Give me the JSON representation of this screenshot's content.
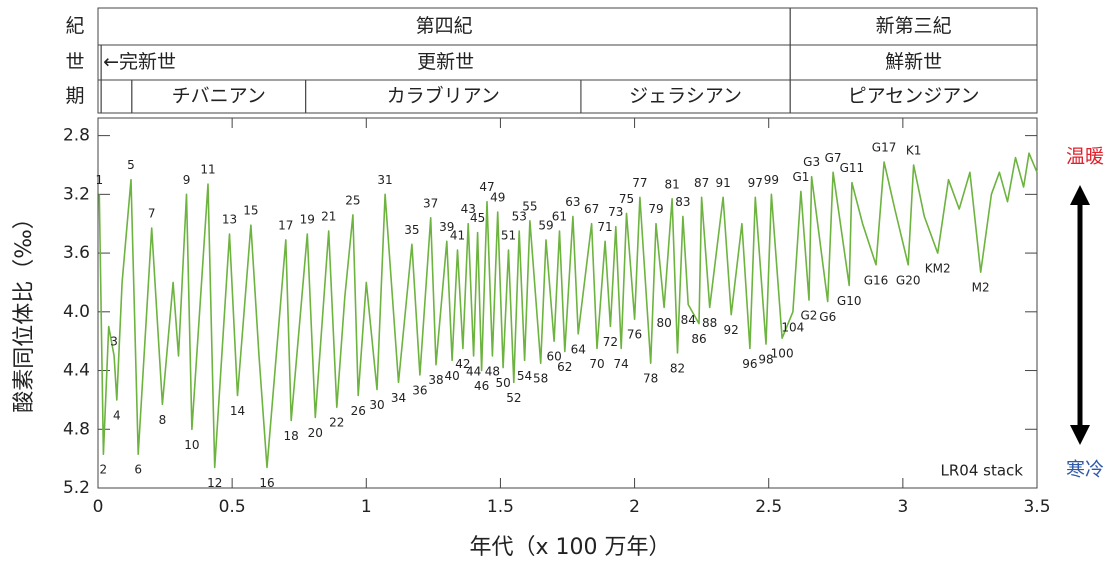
{
  "header": {
    "rows": [
      {
        "label": "紀",
        "cells": [
          {
            "text": "第四紀",
            "start": 0,
            "end": 2.58
          },
          {
            "text": "新第三紀",
            "start": 2.58,
            "end": 3.5
          }
        ]
      },
      {
        "label": "世",
        "cells": [
          {
            "text": "←完新世",
            "start": 0,
            "end": 0.0117
          },
          {
            "text": "更新世",
            "start": 0.0117,
            "end": 2.58
          },
          {
            "text": "鮮新世",
            "start": 2.58,
            "end": 3.5
          }
        ]
      },
      {
        "label": "期",
        "cells": [
          {
            "start": 0,
            "end": 0.0117
          },
          {
            "start": 0.0117,
            "end": 0.126
          },
          {
            "text": "チバニアン",
            "start": 0.126,
            "end": 0.774
          },
          {
            "text": "カラブリアン",
            "start": 0.774,
            "end": 1.8
          },
          {
            "text": "ジェラシアン",
            "start": 1.8,
            "end": 2.58
          },
          {
            "text": "ピアセンジアン",
            "start": 2.58,
            "end": 3.5
          }
        ]
      }
    ]
  },
  "chart_data": {
    "type": "line",
    "x_label": "年代（x 100 万年）",
    "y_label": "酸素同位体比（‰）",
    "xlim": [
      0,
      3.5
    ],
    "xticks": [
      0,
      0.5,
      1,
      1.5,
      2,
      2.5,
      3,
      3.5
    ],
    "ylim": [
      5.2,
      2.68
    ],
    "yticks": [
      {
        "value": 2.8,
        "label": "2.8"
      },
      {
        "value": 3.2,
        "label": "3.2"
      },
      {
        "value": 3.6,
        "label": "3.6"
      },
      {
        "value": 4,
        "label": "4.0"
      },
      {
        "value": 4.4,
        "label": "4.4"
      },
      {
        "value": 4.8,
        "label": "4.8"
      },
      {
        "value": 5.2,
        "label": "5.2"
      }
    ],
    "warm_label": {
      "text": "温暖",
      "color": "#e0202a"
    },
    "cold_label": {
      "text": "寒冷",
      "color": "#2f5aa8"
    },
    "x": [
      0.005,
      0.02,
      0.04,
      0.06,
      0.07,
      0.09,
      0.123,
      0.15,
      0.2,
      0.24,
      0.28,
      0.3,
      0.33,
      0.35,
      0.41,
      0.435,
      0.49,
      0.52,
      0.57,
      0.6,
      0.63,
      0.7,
      0.72,
      0.78,
      0.81,
      0.86,
      0.89,
      0.92,
      0.95,
      0.97,
      1.0,
      1.04,
      1.07,
      1.12,
      1.17,
      1.2,
      1.24,
      1.26,
      1.3,
      1.32,
      1.34,
      1.36,
      1.38,
      1.4,
      1.415,
      1.43,
      1.45,
      1.47,
      1.49,
      1.51,
      1.53,
      1.55,
      1.57,
      1.59,
      1.61,
      1.65,
      1.67,
      1.7,
      1.72,
      1.74,
      1.77,
      1.79,
      1.84,
      1.86,
      1.89,
      1.91,
      1.93,
      1.95,
      1.97,
      2.0,
      2.02,
      2.06,
      2.08,
      2.11,
      2.14,
      2.16,
      2.18,
      2.2,
      2.24,
      2.25,
      2.28,
      2.33,
      2.36,
      2.4,
      2.43,
      2.45,
      2.49,
      2.51,
      2.55,
      2.59,
      2.62,
      2.65,
      2.66,
      2.72,
      2.74,
      2.8,
      2.81,
      2.85,
      2.9,
      2.93,
      2.97,
      3.02,
      3.04,
      3.08,
      3.13,
      3.17,
      3.21,
      3.25,
      3.29,
      3.33,
      3.36,
      3.39,
      3.42,
      3.45,
      3.47,
      3.5
    ],
    "series": [
      {
        "name": "LR04 stack",
        "color": "#6db33f",
        "values": [
          3.2,
          4.97,
          4.1,
          4.3,
          4.6,
          3.8,
          3.1,
          4.97,
          3.43,
          4.63,
          3.8,
          4.3,
          3.2,
          4.8,
          3.13,
          5.06,
          3.47,
          4.57,
          3.41,
          4.3,
          5.06,
          3.51,
          4.74,
          3.47,
          4.72,
          3.45,
          4.65,
          3.9,
          3.34,
          4.57,
          3.8,
          4.53,
          3.2,
          4.48,
          3.54,
          4.43,
          3.36,
          4.36,
          3.52,
          4.33,
          3.58,
          4.25,
          3.4,
          4.3,
          3.46,
          4.4,
          3.25,
          4.3,
          3.32,
          4.38,
          3.58,
          4.48,
          3.45,
          4.33,
          3.38,
          4.35,
          3.51,
          4.2,
          3.45,
          4.27,
          3.35,
          4.15,
          3.4,
          4.25,
          3.52,
          4.1,
          3.42,
          4.25,
          3.33,
          4.05,
          3.22,
          4.35,
          3.4,
          3.97,
          3.23,
          4.28,
          3.35,
          3.95,
          4.08,
          3.22,
          3.97,
          3.22,
          4.02,
          3.4,
          4.25,
          3.22,
          4.22,
          3.2,
          4.18,
          4.0,
          3.18,
          3.92,
          3.08,
          3.93,
          3.05,
          3.82,
          3.12,
          3.4,
          3.68,
          2.98,
          3.3,
          3.68,
          3.0,
          3.35,
          3.6,
          3.1,
          3.3,
          3.05,
          3.73,
          3.2,
          3.05,
          3.25,
          2.95,
          3.15,
          2.92,
          3.05
        ],
        "labels": [
          "1",
          "2",
          null,
          "3",
          "4",
          null,
          "5",
          "6",
          "7",
          "8",
          null,
          null,
          "9",
          "10",
          "11",
          "12",
          "13",
          "14",
          "15",
          null,
          "16",
          "17",
          "18",
          "19",
          "20",
          "21",
          "22",
          null,
          "25",
          "26",
          null,
          "30",
          "31",
          "34",
          "35",
          "36",
          "37",
          "38",
          "39",
          "40",
          "41",
          "42",
          "43",
          "44",
          "45",
          "46",
          "47",
          "48",
          "49",
          "50",
          "51",
          "52",
          "53",
          "54",
          "55",
          "58",
          "59",
          "60",
          "61",
          "62",
          "63",
          "64",
          "67",
          "70",
          "71",
          "72",
          "73",
          "74",
          "75",
          "76",
          "77",
          "78",
          "79",
          "80",
          "81",
          "82",
          "83",
          "84",
          "86",
          "87",
          "88",
          "91",
          "92",
          null,
          "96",
          "97",
          "98",
          "99",
          "100",
          "104",
          "G1",
          "G2",
          "G3",
          "G6",
          "G7",
          "G10",
          "G11",
          null,
          "G16",
          "G17",
          null,
          "G20",
          "K1",
          null,
          "KM2",
          null,
          null,
          null,
          "M2",
          null,
          null,
          null,
          null,
          null,
          null,
          null
        ]
      }
    ]
  }
}
